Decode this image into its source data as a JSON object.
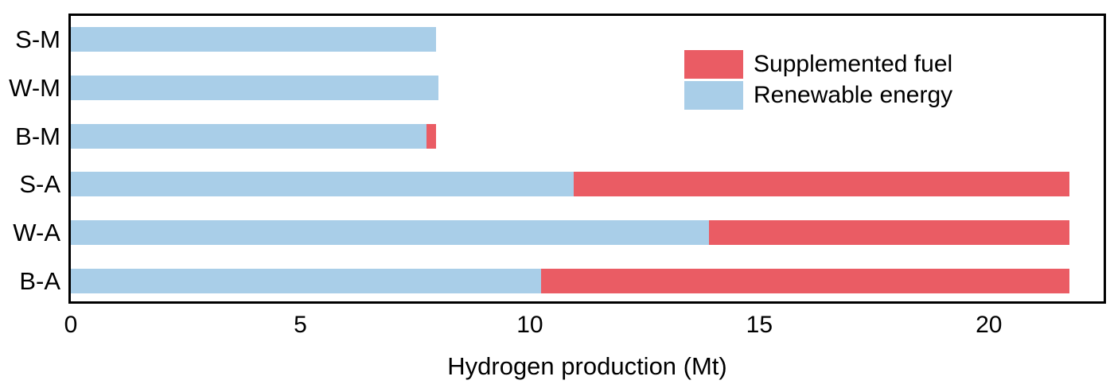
{
  "figure": {
    "background": "#ffffff",
    "frame_color": "#000000",
    "text_color": "#000000"
  },
  "chart_data": {
    "type": "bar",
    "orientation": "horizontal",
    "stacked": true,
    "title": "",
    "xlabel": "Hydrogen production (Mt)",
    "ylabel": "",
    "categories": [
      "S-M",
      "W-M",
      "B-M",
      "S-A",
      "W-A",
      "B-A"
    ],
    "series": [
      {
        "name": "Renewable energy",
        "color": "#a9cee8",
        "values": [
          7.95,
          8.0,
          7.75,
          10.95,
          13.9,
          10.25
        ]
      },
      {
        "name": "Supplemented fuel",
        "color": "#ea5c64",
        "values": [
          0,
          0,
          0.2,
          10.8,
          7.85,
          11.5
        ]
      }
    ],
    "totals": [
      7.95,
      8.0,
      7.95,
      21.75,
      21.75,
      21.75
    ],
    "xticks": [
      "0",
      "5",
      "10",
      "15",
      "20"
    ],
    "xtick_values": [
      0,
      5,
      10,
      15,
      20
    ],
    "xlim": [
      0,
      22.5
    ],
    "grid": false,
    "legend": {
      "position": "upper-right",
      "items": [
        {
          "label": "Supplemented fuel",
          "color": "#ea5c64"
        },
        {
          "label": "Renewable energy",
          "color": "#a9cee8"
        }
      ]
    }
  }
}
